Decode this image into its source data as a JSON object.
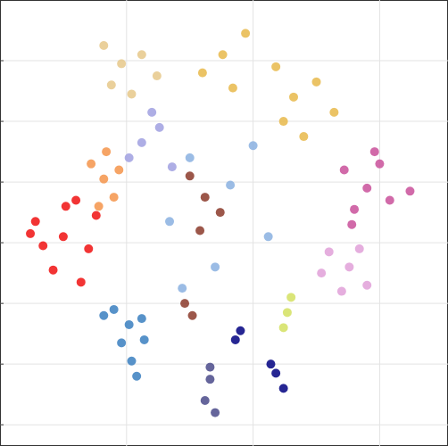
{
  "chart_data": {
    "type": "scatter",
    "xlim": [
      -10,
      7.7
    ],
    "ylim": [
      -7.7,
      7
    ],
    "xticks": [
      -5,
      0,
      5
    ],
    "yticks": [
      -7,
      -5,
      -3,
      -1,
      1,
      3,
      5
    ],
    "grid": true,
    "series": [
      {
        "color": "#f01010",
        "x": [
          -7.5,
          -8.6,
          -6.5,
          -7.9,
          -7.0,
          -8.3,
          -6.8,
          -7.4,
          -8.8,
          -6.2
        ],
        "values": [
          -0.8,
          -0.3,
          -1.2,
          -1.9,
          0.4,
          -1.1,
          -2.3,
          0.2,
          -0.7,
          -0.1
        ]
      },
      {
        "color": "#3a7fc0",
        "x": [
          -4.9,
          -5.5,
          -4.3,
          -4.8,
          -5.9,
          -4.4,
          -4.6,
          -5.2
        ],
        "values": [
          -3.7,
          -3.2,
          -4.2,
          -4.9,
          -3.4,
          -3.5,
          -5.4,
          -4.3
        ]
      },
      {
        "color": "#f5944a",
        "x": [
          -5.9,
          -6.4,
          -5.5,
          -6.1,
          -5.3,
          -5.8
        ],
        "values": [
          1.1,
          1.6,
          0.5,
          0.2,
          1.4,
          2.0
        ]
      },
      {
        "color": "#e6c88a",
        "x": [
          -5.2,
          -5.9,
          -4.4,
          -5.6,
          -3.8,
          -4.8
        ],
        "values": [
          4.9,
          5.5,
          5.2,
          4.2,
          4.5,
          3.9
        ]
      },
      {
        "color": "#e8b94a",
        "x": [
          -1.2,
          -0.3,
          -2.0,
          1.6,
          2.5,
          0.9,
          3.2,
          -0.8,
          1.2,
          2.0
        ],
        "values": [
          5.2,
          5.9,
          4.6,
          3.8,
          4.3,
          4.8,
          3.3,
          4.1,
          3.0,
          2.5
        ]
      },
      {
        "color": "#c9509a",
        "x": [
          4.5,
          3.6,
          5.4,
          4.0,
          5.0,
          6.2,
          3.9,
          4.8
        ],
        "values": [
          0.8,
          1.4,
          0.4,
          0.1,
          1.6,
          0.7,
          -0.4,
          2.0
        ]
      },
      {
        "color": "#e0a0d8",
        "x": [
          3.8,
          3.0,
          4.5,
          3.5,
          4.2,
          2.7
        ],
        "values": [
          -1.8,
          -1.3,
          -2.4,
          -2.6,
          -1.2,
          -2.0
        ]
      },
      {
        "color": "#a0a0e0",
        "x": [
          -4.4,
          -3.7,
          -4.9,
          -3.2,
          -4.0
        ],
        "values": [
          2.3,
          2.8,
          1.8,
          1.5,
          3.3
        ]
      },
      {
        "color": "#8b3a2a",
        "x": [
          -1.9,
          -2.5,
          -1.3,
          -2.1,
          -2.4,
          -2.7
        ],
        "values": [
          0.5,
          1.2,
          0.0,
          -0.6,
          -3.4,
          -3.0
        ]
      },
      {
        "color": "#000080",
        "x": [
          -0.7,
          -0.5,
          0.9,
          1.2,
          0.7
        ],
        "values": [
          -4.2,
          -3.9,
          -5.3,
          -5.8,
          -5.0
        ]
      },
      {
        "color": "#4a4a8a",
        "x": [
          -1.7,
          -1.9,
          -1.5,
          -1.7
        ],
        "values": [
          -5.5,
          -6.2,
          -6.6,
          -5.1
        ]
      },
      {
        "color": "#d4e060",
        "x": [
          1.35,
          1.5,
          1.2
        ],
        "values": [
          -3.3,
          -2.8,
          -3.8
        ]
      },
      {
        "color": "#8ab0e0",
        "x": [
          -2.5,
          -0.9,
          -3.3,
          -1.5,
          0.0,
          -2.8,
          0.6
        ],
        "values": [
          1.8,
          0.9,
          -0.3,
          -1.8,
          2.2,
          -2.5,
          -0.8
        ]
      }
    ]
  }
}
